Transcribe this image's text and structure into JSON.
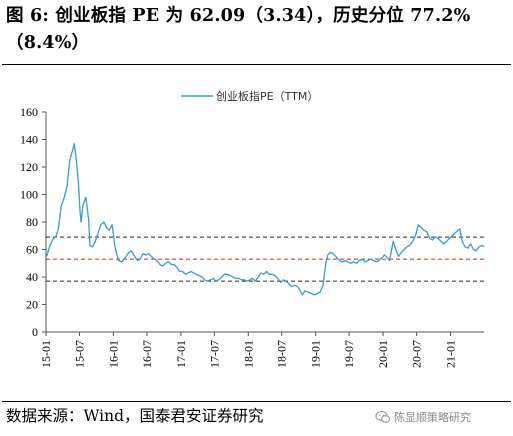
{
  "title": {
    "line1": "图 6: 创业板指 PE 为 62.09（3.34），历史分位 77.2%",
    "line2": "（8.4%）"
  },
  "source": "数据来源：Wind，国泰君安证券研究",
  "watermark": "陈显顺策略研究",
  "colors": {
    "series": "#3a9bd0",
    "upper_line": "#2b2b2b",
    "mid_line": "#cc2222",
    "lower_line": "#2b2b2b",
    "rule": "#000000"
  },
  "chart_data": {
    "type": "line",
    "legend": {
      "label": "创业板指PE（TTM）",
      "position": "top-center"
    },
    "ylim": [
      0,
      160
    ],
    "yticks": [
      0,
      20,
      40,
      60,
      80,
      100,
      120,
      140,
      160
    ],
    "xticks": [
      "15-01",
      "15-07",
      "16-01",
      "16-07",
      "17-01",
      "17-07",
      "18-01",
      "18-07",
      "19-01",
      "19-07",
      "20-01",
      "20-07",
      "21-01"
    ],
    "x_start": "2015-01",
    "x_end": "2021-07",
    "reference_lines": [
      {
        "name": "upper",
        "value": 69,
        "style": "dashed",
        "color": "#2b2b2b"
      },
      {
        "name": "mid",
        "value": 53,
        "style": "dashed",
        "color": "#cc2222"
      },
      {
        "name": "lower",
        "value": 37,
        "style": "dashed",
        "color": "#2b2b2b"
      }
    ],
    "series": [
      {
        "name": "创业板指PE（TTM）",
        "points": [
          [
            "2015-01-05",
            55
          ],
          [
            "2015-01-20",
            62
          ],
          [
            "2015-02-05",
            67
          ],
          [
            "2015-02-25",
            70
          ],
          [
            "2015-03-10",
            76
          ],
          [
            "2015-03-25",
            92
          ],
          [
            "2015-04-10",
            98
          ],
          [
            "2015-04-25",
            106
          ],
          [
            "2015-05-10",
            125
          ],
          [
            "2015-05-25",
            132
          ],
          [
            "2015-06-03",
            137
          ],
          [
            "2015-06-12",
            128
          ],
          [
            "2015-06-25",
            110
          ],
          [
            "2015-07-05",
            87
          ],
          [
            "2015-07-10",
            80
          ],
          [
            "2015-07-20",
            92
          ],
          [
            "2015-08-05",
            98
          ],
          [
            "2015-08-20",
            82
          ],
          [
            "2015-08-27",
            63
          ],
          [
            "2015-09-10",
            62
          ],
          [
            "2015-09-25",
            66
          ],
          [
            "2015-10-10",
            72
          ],
          [
            "2015-10-25",
            78
          ],
          [
            "2015-11-10",
            80
          ],
          [
            "2015-11-25",
            76
          ],
          [
            "2015-12-10",
            74
          ],
          [
            "2015-12-25",
            78
          ],
          [
            "2016-01-10",
            62
          ],
          [
            "2016-01-28",
            52
          ],
          [
            "2016-02-15",
            51
          ],
          [
            "2016-03-01",
            53
          ],
          [
            "2016-03-20",
            57
          ],
          [
            "2016-04-05",
            59
          ],
          [
            "2016-04-20",
            56
          ],
          [
            "2016-05-10",
            52
          ],
          [
            "2016-05-25",
            53
          ],
          [
            "2016-06-10",
            57
          ],
          [
            "2016-06-25",
            56
          ],
          [
            "2016-07-10",
            57
          ],
          [
            "2016-07-25",
            55
          ],
          [
            "2016-08-10",
            53
          ],
          [
            "2016-08-25",
            52
          ],
          [
            "2016-09-10",
            49
          ],
          [
            "2016-09-25",
            48
          ],
          [
            "2016-10-10",
            50
          ],
          [
            "2016-10-25",
            51
          ],
          [
            "2016-11-10",
            49
          ],
          [
            "2016-11-25",
            49
          ],
          [
            "2016-12-10",
            47
          ],
          [
            "2016-12-25",
            44
          ],
          [
            "2017-01-10",
            44
          ],
          [
            "2017-01-25",
            42
          ],
          [
            "2017-02-10",
            43
          ],
          [
            "2017-02-25",
            44
          ],
          [
            "2017-03-10",
            43
          ],
          [
            "2017-03-25",
            42
          ],
          [
            "2017-04-10",
            41
          ],
          [
            "2017-04-25",
            40
          ],
          [
            "2017-05-10",
            38
          ],
          [
            "2017-05-25",
            37
          ],
          [
            "2017-06-10",
            38
          ],
          [
            "2017-06-25",
            39
          ],
          [
            "2017-07-10",
            37
          ],
          [
            "2017-07-25",
            38
          ],
          [
            "2017-08-10",
            40
          ],
          [
            "2017-08-25",
            42
          ],
          [
            "2017-09-10",
            42
          ],
          [
            "2017-09-25",
            41
          ],
          [
            "2017-10-10",
            40
          ],
          [
            "2017-10-25",
            39
          ],
          [
            "2017-11-10",
            39
          ],
          [
            "2017-11-25",
            38
          ],
          [
            "2017-12-10",
            38
          ],
          [
            "2017-12-25",
            37
          ],
          [
            "2018-01-10",
            38
          ],
          [
            "2018-01-25",
            39
          ],
          [
            "2018-02-07",
            37
          ],
          [
            "2018-02-25",
            40
          ],
          [
            "2018-03-10",
            43
          ],
          [
            "2018-03-25",
            42
          ],
          [
            "2018-04-10",
            44
          ],
          [
            "2018-04-25",
            42
          ],
          [
            "2018-05-10",
            42
          ],
          [
            "2018-05-25",
            41
          ],
          [
            "2018-06-10",
            39
          ],
          [
            "2018-06-25",
            36
          ],
          [
            "2018-07-10",
            38
          ],
          [
            "2018-07-25",
            37
          ],
          [
            "2018-08-10",
            35
          ],
          [
            "2018-08-25",
            33
          ],
          [
            "2018-09-10",
            34
          ],
          [
            "2018-09-25",
            33
          ],
          [
            "2018-10-10",
            30
          ],
          [
            "2018-10-20",
            27
          ],
          [
            "2018-11-05",
            30
          ],
          [
            "2018-11-20",
            29
          ],
          [
            "2018-12-10",
            28
          ],
          [
            "2018-12-25",
            27
          ],
          [
            "2019-01-10",
            28
          ],
          [
            "2019-01-25",
            29
          ],
          [
            "2019-02-10",
            34
          ],
          [
            "2019-02-25",
            50
          ],
          [
            "2019-03-08",
            56
          ],
          [
            "2019-03-20",
            58
          ],
          [
            "2019-04-05",
            57
          ],
          [
            "2019-04-20",
            55
          ],
          [
            "2019-05-10",
            52
          ],
          [
            "2019-05-25",
            51
          ],
          [
            "2019-06-10",
            52
          ],
          [
            "2019-06-25",
            51
          ],
          [
            "2019-07-10",
            50
          ],
          [
            "2019-07-25",
            51
          ],
          [
            "2019-08-10",
            50
          ],
          [
            "2019-08-25",
            52
          ],
          [
            "2019-09-10",
            53
          ],
          [
            "2019-09-25",
            51
          ],
          [
            "2019-10-10",
            52
          ],
          [
            "2019-10-25",
            53
          ],
          [
            "2019-11-10",
            52
          ],
          [
            "2019-11-25",
            51
          ],
          [
            "2019-12-10",
            52
          ],
          [
            "2019-12-25",
            54
          ],
          [
            "2020-01-10",
            56
          ],
          [
            "2020-01-25",
            54
          ],
          [
            "2020-02-05",
            52
          ],
          [
            "2020-02-25",
            66
          ],
          [
            "2020-03-10",
            60
          ],
          [
            "2020-03-25",
            55
          ],
          [
            "2020-04-10",
            58
          ],
          [
            "2020-04-25",
            60
          ],
          [
            "2020-05-10",
            62
          ],
          [
            "2020-05-25",
            63
          ],
          [
            "2020-06-10",
            66
          ],
          [
            "2020-06-25",
            70
          ],
          [
            "2020-07-10",
            78
          ],
          [
            "2020-07-25",
            76
          ],
          [
            "2020-08-10",
            74
          ],
          [
            "2020-08-25",
            73
          ],
          [
            "2020-09-10",
            68
          ],
          [
            "2020-09-25",
            67
          ],
          [
            "2020-10-10",
            69
          ],
          [
            "2020-10-25",
            68
          ],
          [
            "2020-11-10",
            66
          ],
          [
            "2020-11-25",
            64
          ],
          [
            "2020-12-10",
            66
          ],
          [
            "2020-12-25",
            68
          ],
          [
            "2021-01-10",
            70
          ],
          [
            "2021-01-25",
            72
          ],
          [
            "2021-02-10",
            74
          ],
          [
            "2021-02-20",
            75
          ],
          [
            "2021-03-05",
            66
          ],
          [
            "2021-03-20",
            62
          ],
          [
            "2021-04-05",
            61
          ],
          [
            "2021-04-20",
            64
          ],
          [
            "2021-05-05",
            60
          ],
          [
            "2021-05-20",
            59
          ],
          [
            "2021-06-05",
            62
          ],
          [
            "2021-06-20",
            63
          ],
          [
            "2021-07-02",
            62
          ]
        ]
      }
    ]
  }
}
